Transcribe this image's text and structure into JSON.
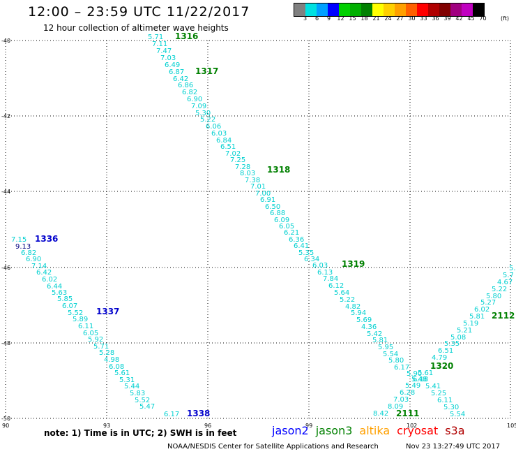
{
  "header": {
    "title": "12:00 – 23:59 UTC 11/22/2017",
    "subtitle": "12 hour collection of altimeter wave heights"
  },
  "legend": {
    "colors": [
      "#808080",
      "#00e0e0",
      "#00a0ff",
      "#0000ff",
      "#00d000",
      "#00b000",
      "#008000",
      "#ffff00",
      "#ffd000",
      "#ffa000",
      "#ff6000",
      "#ff0000",
      "#b00000",
      "#800000",
      "#a00080",
      "#c000c0",
      "#000000"
    ],
    "labels": [
      "3",
      "6",
      "9",
      "12",
      "15",
      "18",
      "21",
      "24",
      "27",
      "30",
      "33",
      "36",
      "39",
      "42",
      "45",
      "70"
    ],
    "unit": "(ft)"
  },
  "axes": {
    "x_ticks": [
      "90",
      "93",
      "96",
      "99",
      "102",
      "105"
    ],
    "y_ticks": [
      "-40",
      "-42",
      "-44",
      "-46",
      "-48",
      "-50"
    ]
  },
  "tracks": [
    {
      "pass": "1316",
      "pass_color": "#008000",
      "pass_pos": [
        251,
        56
      ],
      "points": [
        {
          "v": "5.71",
          "c": "#00d0d0",
          "p": [
            212,
            56
          ]
        },
        {
          "v": "7.11",
          "c": "#00d0d0",
          "p": [
            218,
            66
          ]
        },
        {
          "v": "7.47",
          "c": "#00d0d0",
          "p": [
            224,
            76
          ]
        },
        {
          "v": "7.03",
          "c": "#00d0d0",
          "p": [
            230,
            86
          ]
        },
        {
          "v": "6.49",
          "c": "#00d0d0",
          "p": [
            236,
            96
          ]
        },
        {
          "v": "6.87",
          "c": "#00d0d0",
          "p": [
            242,
            106
          ]
        },
        {
          "v": "6.42",
          "c": "#00d0d0",
          "p": [
            248,
            116
          ]
        },
        {
          "v": "6.86",
          "c": "#00d0d0",
          "p": [
            255,
            125
          ]
        },
        {
          "v": "6.82",
          "c": "#00d0d0",
          "p": [
            261,
            135
          ]
        },
        {
          "v": "6.90",
          "c": "#00d0d0",
          "p": [
            268,
            145
          ]
        },
        {
          "v": "7.09",
          "c": "#00d0d0",
          "p": [
            274,
            155
          ]
        },
        {
          "v": "5.30",
          "c": "#00d0d0",
          "p": [
            280,
            165
          ]
        },
        {
          "v": "5.22",
          "c": "#00d0d0",
          "p": [
            287,
            174
          ]
        },
        {
          "v": "6.06",
          "c": "#00d0d0",
          "p": [
            295,
            184
          ]
        },
        {
          "v": "6.03",
          "c": "#00d0d0",
          "p": [
            303,
            194
          ]
        },
        {
          "v": "6.84",
          "c": "#00d0d0",
          "p": [
            310,
            204
          ]
        },
        {
          "v": "6.51",
          "c": "#00d0d0",
          "p": [
            316,
            213
          ]
        },
        {
          "v": "7.02",
          "c": "#00d0d0",
          "p": [
            323,
            223
          ]
        },
        {
          "v": "7.25",
          "c": "#00d0d0",
          "p": [
            330,
            232
          ]
        },
        {
          "v": "7.28",
          "c": "#00d0d0",
          "p": [
            337,
            242
          ]
        },
        {
          "v": "8.03",
          "c": "#00d0d0",
          "p": [
            344,
            251
          ]
        },
        {
          "v": "7.38",
          "c": "#00d0d0",
          "p": [
            351,
            261
          ]
        },
        {
          "v": "7.01",
          "c": "#00d0d0",
          "p": [
            359,
            270
          ]
        },
        {
          "v": "7.00",
          "c": "#00d0d0",
          "p": [
            366,
            280
          ]
        },
        {
          "v": "6.91",
          "c": "#00d0d0",
          "p": [
            373,
            289
          ]
        },
        {
          "v": "6.50",
          "c": "#00d0d0",
          "p": [
            380,
            299
          ]
        },
        {
          "v": "6.88",
          "c": "#00d0d0",
          "p": [
            387,
            308
          ]
        },
        {
          "v": "6.09",
          "c": "#00d0d0",
          "p": [
            393,
            318
          ]
        },
        {
          "v": "6.05",
          "c": "#00d0d0",
          "p": [
            400,
            327
          ]
        },
        {
          "v": "6.21",
          "c": "#00d0d0",
          "p": [
            407,
            336
          ]
        },
        {
          "v": "6.36",
          "c": "#00d0d0",
          "p": [
            414,
            346
          ]
        },
        {
          "v": "6.41",
          "c": "#00d0d0",
          "p": [
            421,
            355
          ]
        },
        {
          "v": "5.35",
          "c": "#00d0d0",
          "p": [
            428,
            365
          ]
        },
        {
          "v": "6.34",
          "c": "#00d0d0",
          "p": [
            436,
            374
          ]
        },
        {
          "v": "6.03",
          "c": "#00d0d0",
          "p": [
            448,
            383
          ]
        },
        {
          "v": "6.13",
          "c": "#00d0d0",
          "p": [
            455,
            393
          ]
        },
        {
          "v": "7.84",
          "c": "#00d0d0",
          "p": [
            463,
            402
          ]
        },
        {
          "v": "6.12",
          "c": "#00d0d0",
          "p": [
            471,
            412
          ]
        },
        {
          "v": "5.64",
          "c": "#00d0d0",
          "p": [
            479,
            422
          ]
        },
        {
          "v": "5.22",
          "c": "#00d0d0",
          "p": [
            487,
            432
          ]
        },
        {
          "v": "4.82",
          "c": "#00d0d0",
          "p": [
            495,
            442
          ]
        },
        {
          "v": "5.94",
          "c": "#00d0d0",
          "p": [
            503,
            451
          ]
        },
        {
          "v": "5.69",
          "c": "#00d0d0",
          "p": [
            511,
            461
          ]
        },
        {
          "v": "4.36",
          "c": "#00d0d0",
          "p": [
            518,
            471
          ]
        },
        {
          "v": "5.42",
          "c": "#00d0d0",
          "p": [
            526,
            481
          ]
        },
        {
          "v": "5.81",
          "c": "#00d0d0",
          "p": [
            534,
            490
          ]
        },
        {
          "v": "5.95",
          "c": "#00d0d0",
          "p": [
            542,
            500
          ]
        },
        {
          "v": "5.54",
          "c": "#00d0d0",
          "p": [
            549,
            510
          ]
        },
        {
          "v": "5.80",
          "c": "#00d0d0",
          "p": [
            557,
            519
          ]
        },
        {
          "v": "6.17",
          "c": "#00d0d0",
          "p": [
            565,
            529
          ]
        }
      ]
    },
    {
      "pass": "1317",
      "pass_color": "#008000",
      "pass_pos": [
        280,
        106
      ],
      "points": []
    },
    {
      "pass": "1318",
      "pass_color": "#008000",
      "pass_pos": [
        383,
        247
      ],
      "points": []
    },
    {
      "pass": "1319",
      "pass_color": "#008000",
      "pass_pos": [
        490,
        382
      ],
      "points": []
    },
    {
      "pass": "1336",
      "pass_color": "#0000cc",
      "pass_pos": [
        50,
        346
      ],
      "points": [
        {
          "v": "7.15",
          "c": "#00d0d0",
          "p": [
            16,
            346
          ]
        },
        {
          "v": "9.13",
          "c": "#000080",
          "p": [
            22,
            356
          ]
        },
        {
          "v": "6.82",
          "c": "#00d0d0",
          "p": [
            30,
            365
          ]
        },
        {
          "v": "6.90",
          "c": "#00d0d0",
          "p": [
            37,
            374
          ]
        },
        {
          "v": "7.14",
          "c": "#00d0d0",
          "p": [
            45,
            384
          ]
        },
        {
          "v": "6.42",
          "c": "#00d0d0",
          "p": [
            52,
            393
          ]
        },
        {
          "v": "6.02",
          "c": "#00d0d0",
          "p": [
            60,
            403
          ]
        },
        {
          "v": "6.44",
          "c": "#00d0d0",
          "p": [
            67,
            413
          ]
        },
        {
          "v": "5.63",
          "c": "#00d0d0",
          "p": [
            74,
            422
          ]
        },
        {
          "v": "5.85",
          "c": "#00d0d0",
          "p": [
            82,
            431
          ]
        },
        {
          "v": "6.07",
          "c": "#00d0d0",
          "p": [
            89,
            441
          ]
        },
        {
          "v": "5.52",
          "c": "#00d0d0",
          "p": [
            97,
            451
          ]
        },
        {
          "v": "5.89",
          "c": "#00d0d0",
          "p": [
            104,
            460
          ]
        },
        {
          "v": "6.11",
          "c": "#00d0d0",
          "p": [
            112,
            470
          ]
        },
        {
          "v": "6.05",
          "c": "#00d0d0",
          "p": [
            119,
            480
          ]
        },
        {
          "v": "5.92",
          "c": "#00d0d0",
          "p": [
            126,
            489
          ]
        },
        {
          "v": "5.71",
          "c": "#00d0d0",
          "p": [
            134,
            499
          ]
        },
        {
          "v": "5.28",
          "c": "#00d0d0",
          "p": [
            142,
            508
          ]
        },
        {
          "v": "4.98",
          "c": "#00d0d0",
          "p": [
            149,
            518
          ]
        },
        {
          "v": "6.08",
          "c": "#00d0d0",
          "p": [
            156,
            528
          ]
        },
        {
          "v": "5.61",
          "c": "#00d0d0",
          "p": [
            164,
            537
          ]
        },
        {
          "v": "5.31",
          "c": "#00d0d0",
          "p": [
            171,
            547
          ]
        },
        {
          "v": "5.44",
          "c": "#00d0d0",
          "p": [
            178,
            556
          ]
        },
        {
          "v": "5.83",
          "c": "#00d0d0",
          "p": [
            186,
            566
          ]
        },
        {
          "v": "5.52",
          "c": "#00d0d0",
          "p": [
            193,
            576
          ]
        },
        {
          "v": "5.47",
          "c": "#00d0d0",
          "p": [
            200,
            585
          ]
        },
        {
          "v": "6.17",
          "c": "#00d0d0",
          "p": [
            235,
            596
          ]
        }
      ]
    },
    {
      "pass": "1337",
      "pass_color": "#0000cc",
      "pass_pos": [
        138,
        450
      ],
      "points": []
    },
    {
      "pass": "1338",
      "pass_color": "#0000cc",
      "pass_pos": [
        268,
        596
      ],
      "points": []
    },
    {
      "pass": "2111",
      "pass_color": "#008000",
      "pass_pos": [
        568,
        596
      ],
      "points": [
        {
          "v": "8.42",
          "c": "#00d0d0",
          "p": [
            535,
            595
          ]
        },
        {
          "v": "8.09",
          "c": "#00d0d0",
          "p": [
            556,
            585
          ]
        },
        {
          "v": "7.03",
          "c": "#00d0d0",
          "p": [
            564,
            575
          ]
        },
        {
          "v": "6.28",
          "c": "#00d0d0",
          "p": [
            573,
            565
          ]
        },
        {
          "v": "5.49",
          "c": "#00d0d0",
          "p": [
            581,
            555
          ]
        },
        {
          "v": "5.48",
          "c": "#00d0d0",
          "p": [
            590,
            546
          ]
        },
        {
          "v": "5.61",
          "c": "#00d0d0",
          "p": [
            599,
            537
          ]
        },
        {
          "v": "4.79",
          "c": "#00d0d0",
          "p": [
            619,
            515
          ]
        },
        {
          "v": "6.51",
          "c": "#00d0d0",
          "p": [
            628,
            505
          ]
        },
        {
          "v": "5.35",
          "c": "#00d0d0",
          "p": [
            637,
            495
          ]
        },
        {
          "v": "5.08",
          "c": "#00d0d0",
          "p": [
            646,
            486
          ]
        },
        {
          "v": "5.21",
          "c": "#00d0d0",
          "p": [
            655,
            476
          ]
        },
        {
          "v": "5.19",
          "c": "#00d0d0",
          "p": [
            664,
            466
          ]
        },
        {
          "v": "5.81",
          "c": "#00d0d0",
          "p": [
            673,
            456
          ]
        },
        {
          "v": "6.02",
          "c": "#00d0d0",
          "p": [
            680,
            446
          ]
        },
        {
          "v": "5.27",
          "c": "#00d0d0",
          "p": [
            689,
            436
          ]
        },
        {
          "v": "5.80",
          "c": "#00d0d0",
          "p": [
            697,
            427
          ]
        },
        {
          "v": "5.22",
          "c": "#00d0d0",
          "p": [
            705,
            417
          ]
        },
        {
          "v": "4.67",
          "c": "#00d0d0",
          "p": [
            713,
            407
          ]
        },
        {
          "v": "5.7",
          "c": "#00d0d0",
          "p": [
            721,
            397
          ]
        },
        {
          "v": "5.",
          "c": "#00d0d0",
          "p": [
            730,
            387
          ]
        }
      ]
    },
    {
      "pass": "2112",
      "pass_color": "#008000",
      "pass_pos": [
        705,
        456
      ],
      "points": []
    },
    {
      "pass": "1320",
      "pass_color": "#008000",
      "pass_pos": [
        617,
        528
      ],
      "points": [
        {
          "v": "5.90",
          "c": "#00d0d0",
          "p": [
            583,
            538
          ]
        },
        {
          "v": "6.18",
          "c": "#00d0d0",
          "p": [
            592,
            546
          ]
        },
        {
          "v": "5.41",
          "c": "#00d0d0",
          "p": [
            610,
            556
          ]
        },
        {
          "v": "5.25",
          "c": "#00d0d0",
          "p": [
            618,
            566
          ]
        },
        {
          "v": "6.11",
          "c": "#00d0d0",
          "p": [
            627,
            576
          ]
        },
        {
          "v": "5.30",
          "c": "#00d0d0",
          "p": [
            636,
            586
          ]
        },
        {
          "v": "5.54",
          "c": "#00d0d0",
          "p": [
            645,
            596
          ]
        }
      ]
    }
  ],
  "footer": {
    "note": "note: 1) Time is in UTC; 2) SWH is in feet",
    "satellites": [
      {
        "name": "jason2",
        "color": "#0000ff"
      },
      {
        "name": "jason3",
        "color": "#008000"
      },
      {
        "name": "altika",
        "color": "#ffa000"
      },
      {
        "name": "cryosat",
        "color": "#ff0000"
      },
      {
        "name": "s3a",
        "color": "#b00000"
      }
    ],
    "credit": "NOAA/NESDIS Center for Satellite Applications and Research",
    "timestamp": "Nov 23 13:27:49 UTC 2017"
  }
}
